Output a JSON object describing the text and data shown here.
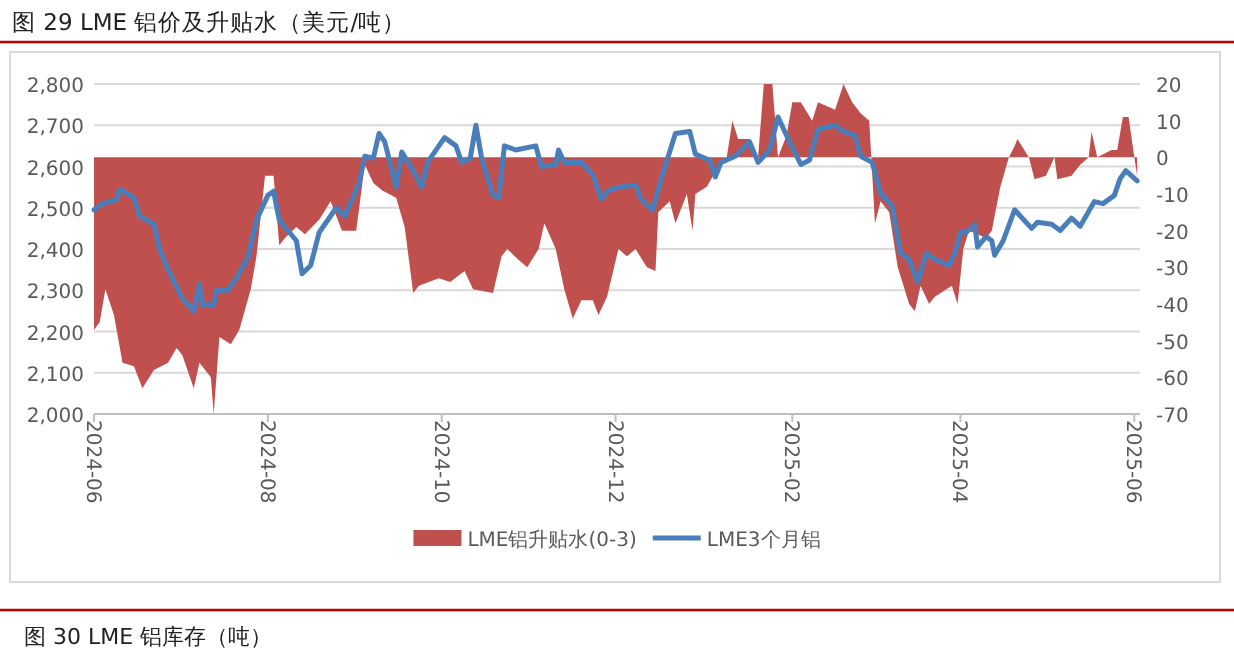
{
  "chart_data": {
    "type": "line",
    "title": "图 29 LME 铝价及升贴水（美元/吨）",
    "annotations": [
      "图 30 LME 铝库存（吨）"
    ],
    "xlim": [
      "2024-06-01",
      "2025-06-03"
    ],
    "xticks": [
      {
        "value": "2024-06-01",
        "label": "2024-06"
      },
      {
        "value": "2024-08-01",
        "label": "2024-08"
      },
      {
        "value": "2024-10-01",
        "label": "2024-10"
      },
      {
        "value": "2024-12-01",
        "label": "2024-12"
      },
      {
        "value": "2025-02-01",
        "label": "2025-02"
      },
      {
        "value": "2025-04-01",
        "label": "2025-04"
      },
      {
        "value": "2025-06-01",
        "label": "2025-06"
      }
    ],
    "ylim": [
      2000,
      2800
    ],
    "yticks": [
      {
        "value": 2000,
        "label": "2,000"
      },
      {
        "value": 2100,
        "label": "2,100"
      },
      {
        "value": 2200,
        "label": "2,200"
      },
      {
        "value": 2300,
        "label": "2,300"
      },
      {
        "value": 2400,
        "label": "2,400"
      },
      {
        "value": 2500,
        "label": "2,500"
      },
      {
        "value": 2600,
        "label": "2,600"
      },
      {
        "value": 2700,
        "label": "2,700"
      },
      {
        "value": 2800,
        "label": "2,800"
      }
    ],
    "y2lim": [
      -70,
      20
    ],
    "y2ticks": [
      -70,
      -60,
      -50,
      -40,
      -30,
      -20,
      -10,
      0,
      10,
      20
    ],
    "grid": "y",
    "legend": "bottom",
    "series": [
      {
        "name": "LME铝升贴水(0-3)",
        "type": "area",
        "axis": "y2",
        "color": "#c0504d",
        "x": [
          "2024-06-01",
          "2024-06-03",
          "2024-06-05",
          "2024-06-08",
          "2024-06-11",
          "2024-06-15",
          "2024-06-18",
          "2024-06-22",
          "2024-06-27",
          "2024-06-30",
          "2024-07-02",
          "2024-07-06",
          "2024-07-08",
          "2024-07-12",
          "2024-07-13",
          "2024-07-15",
          "2024-07-19",
          "2024-07-22",
          "2024-07-26",
          "2024-07-28",
          "2024-07-31",
          "2024-08-03",
          "2024-08-05",
          "2024-08-07",
          "2024-08-11",
          "2024-08-14",
          "2024-08-19",
          "2024-08-23",
          "2024-08-27",
          "2024-09-01",
          "2024-09-04",
          "2024-09-07",
          "2024-09-10",
          "2024-09-15",
          "2024-09-18",
          "2024-09-21",
          "2024-09-23",
          "2024-09-30",
          "2024-10-04",
          "2024-10-09",
          "2024-10-12",
          "2024-10-19",
          "2024-10-22",
          "2024-10-24",
          "2024-10-28",
          "2024-10-31",
          "2024-11-04",
          "2024-11-06",
          "2024-11-10",
          "2024-11-13",
          "2024-11-16",
          "2024-11-19",
          "2024-11-23",
          "2024-11-25",
          "2024-11-28",
          "2024-12-02",
          "2024-12-05",
          "2024-12-08",
          "2024-12-12",
          "2024-12-15",
          "2024-12-16",
          "2024-12-20",
          "2024-12-22",
          "2024-12-26",
          "2024-12-28",
          "2024-12-29",
          "2025-01-02",
          "2025-01-05",
          "2025-01-09",
          "2025-01-11",
          "2025-01-13",
          "2025-01-17",
          "2025-01-20",
          "2025-01-22",
          "2025-01-25",
          "2025-01-27",
          "2025-01-30",
          "2025-02-01",
          "2025-02-04",
          "2025-02-08",
          "2025-02-10",
          "2025-02-16",
          "2025-02-19",
          "2025-02-22",
          "2025-02-25",
          "2025-02-28",
          "2025-03-02",
          "2025-03-04",
          "2025-03-07",
          "2025-03-10",
          "2025-03-14",
          "2025-03-16",
          "2025-03-18",
          "2025-03-21",
          "2025-03-23",
          "2025-03-29",
          "2025-03-31",
          "2025-04-02",
          "2025-04-04",
          "2025-04-10",
          "2025-04-12",
          "2025-04-15",
          "2025-04-18",
          "2025-04-20",
          "2025-04-21",
          "2025-04-25",
          "2025-04-27",
          "2025-05-01",
          "2025-05-04",
          "2025-05-05",
          "2025-05-10",
          "2025-05-13",
          "2025-05-16",
          "2025-05-17",
          "2025-05-19",
          "2025-05-24",
          "2025-05-26",
          "2025-05-28",
          "2025-05-30",
          "2025-06-01",
          "2025-06-02"
        ],
        "values": [
          -47,
          -45,
          -36,
          -43,
          -56,
          -57,
          -63,
          -58,
          -56,
          -52,
          -54,
          -63,
          -56,
          -60,
          -70,
          -49,
          -51,
          -47,
          -36,
          -27,
          -5,
          -5,
          -24,
          -22,
          -19,
          -21,
          -17,
          -12,
          -20,
          -20,
          -2,
          -7,
          -9,
          -11,
          -19,
          -37,
          -35,
          -33,
          -34,
          -31,
          -36,
          -37,
          -27,
          -25,
          -28,
          -30,
          -25,
          -18,
          -25,
          -36,
          -44,
          -39,
          -39,
          -43,
          -38,
          -25,
          -27,
          -25,
          -30,
          -31,
          -15,
          -12,
          -18,
          -10,
          -20,
          -10,
          -8,
          -4,
          0,
          10,
          5,
          5,
          0,
          20,
          20,
          0,
          6,
          15,
          15,
          10,
          15,
          13,
          20,
          15,
          12,
          10,
          -18,
          -12,
          -15,
          -30,
          -40,
          -42,
          -35,
          -40,
          -38,
          -35,
          -40,
          -25,
          -20,
          -22,
          -20,
          -8,
          0,
          3,
          5,
          0,
          -6,
          -5,
          0,
          -6,
          -5,
          -2,
          0,
          7,
          0,
          2,
          2,
          11,
          11,
          0,
          -5
        ]
      },
      {
        "name": "LME3个月铝",
        "axis": "y",
        "color": "#4a7ebb",
        "x": [
          "2024-06-01",
          "2024-06-04",
          "2024-06-09",
          "2024-06-10",
          "2024-06-15",
          "2024-06-17",
          "2024-06-22",
          "2024-06-24",
          "2024-06-27",
          "2024-07-02",
          "2024-07-06",
          "2024-07-08",
          "2024-07-09",
          "2024-07-13",
          "2024-07-14",
          "2024-07-18",
          "2024-07-21",
          "2024-07-25",
          "2024-07-28",
          "2024-08-01",
          "2024-08-03",
          "2024-08-05",
          "2024-08-11",
          "2024-08-13",
          "2024-08-16",
          "2024-08-19",
          "2024-08-25",
          "2024-08-28",
          "2024-09-02",
          "2024-09-04",
          "2024-09-07",
          "2024-09-09",
          "2024-09-11",
          "2024-09-15",
          "2024-09-17",
          "2024-09-21",
          "2024-09-24",
          "2024-09-26",
          "2024-09-30",
          "2024-10-02",
          "2024-10-06",
          "2024-10-08",
          "2024-10-11",
          "2024-10-13",
          "2024-10-15",
          "2024-10-19",
          "2024-10-21",
          "2024-10-23",
          "2024-10-27",
          "2024-11-03",
          "2024-11-05",
          "2024-11-10",
          "2024-11-11",
          "2024-11-13",
          "2024-11-19",
          "2024-11-23",
          "2024-11-26",
          "2024-11-28",
          "2024-12-02",
          "2024-12-08",
          "2024-12-10",
          "2024-12-14",
          "2024-12-17",
          "2024-12-22",
          "2024-12-27",
          "2024-12-29",
          "2025-01-03",
          "2025-01-05",
          "2025-01-07",
          "2025-01-12",
          "2025-01-17",
          "2025-01-20",
          "2025-01-24",
          "2025-01-27",
          "2025-01-31",
          "2025-02-04",
          "2025-02-07",
          "2025-02-10",
          "2025-02-16",
          "2025-02-19",
          "2025-02-23",
          "2025-02-25",
          "2025-03-01",
          "2025-03-04",
          "2025-03-08",
          "2025-03-11",
          "2025-03-14",
          "2025-03-17",
          "2025-03-20",
          "2025-03-23",
          "2025-03-28",
          "2025-03-30",
          "2025-04-01",
          "2025-04-03",
          "2025-04-06",
          "2025-04-07",
          "2025-04-10",
          "2025-04-12",
          "2025-04-13",
          "2025-04-16",
          "2025-04-20",
          "2025-04-24",
          "2025-04-26",
          "2025-04-28",
          "2025-05-03",
          "2025-05-06",
          "2025-05-10",
          "2025-05-13",
          "2025-05-18",
          "2025-05-21",
          "2025-05-25",
          "2025-05-27",
          "2025-05-29",
          "2025-06-02"
        ],
        "values": [
          2495,
          2510,
          2520,
          2545,
          2525,
          2480,
          2460,
          2400,
          2350,
          2280,
          2250,
          2315,
          2265,
          2265,
          2300,
          2300,
          2330,
          2380,
          2470,
          2530,
          2540,
          2470,
          2420,
          2340,
          2360,
          2440,
          2500,
          2480,
          2560,
          2625,
          2620,
          2680,
          2660,
          2550,
          2635,
          2590,
          2550,
          2610,
          2650,
          2670,
          2650,
          2610,
          2620,
          2700,
          2620,
          2530,
          2525,
          2650,
          2640,
          2650,
          2600,
          2605,
          2640,
          2610,
          2610,
          2580,
          2520,
          2540,
          2550,
          2555,
          2520,
          2495,
          2570,
          2680,
          2685,
          2630,
          2615,
          2575,
          2610,
          2625,
          2660,
          2610,
          2640,
          2720,
          2660,
          2605,
          2615,
          2690,
          2700,
          2685,
          2675,
          2625,
          2610,
          2535,
          2505,
          2390,
          2375,
          2320,
          2390,
          2375,
          2360,
          2390,
          2440,
          2440,
          2460,
          2405,
          2430,
          2420,
          2385,
          2420,
          2495,
          2465,
          2450,
          2465,
          2460,
          2445,
          2475,
          2455,
          2515,
          2510,
          2530,
          2570,
          2590,
          2565
        ]
      }
    ]
  }
}
